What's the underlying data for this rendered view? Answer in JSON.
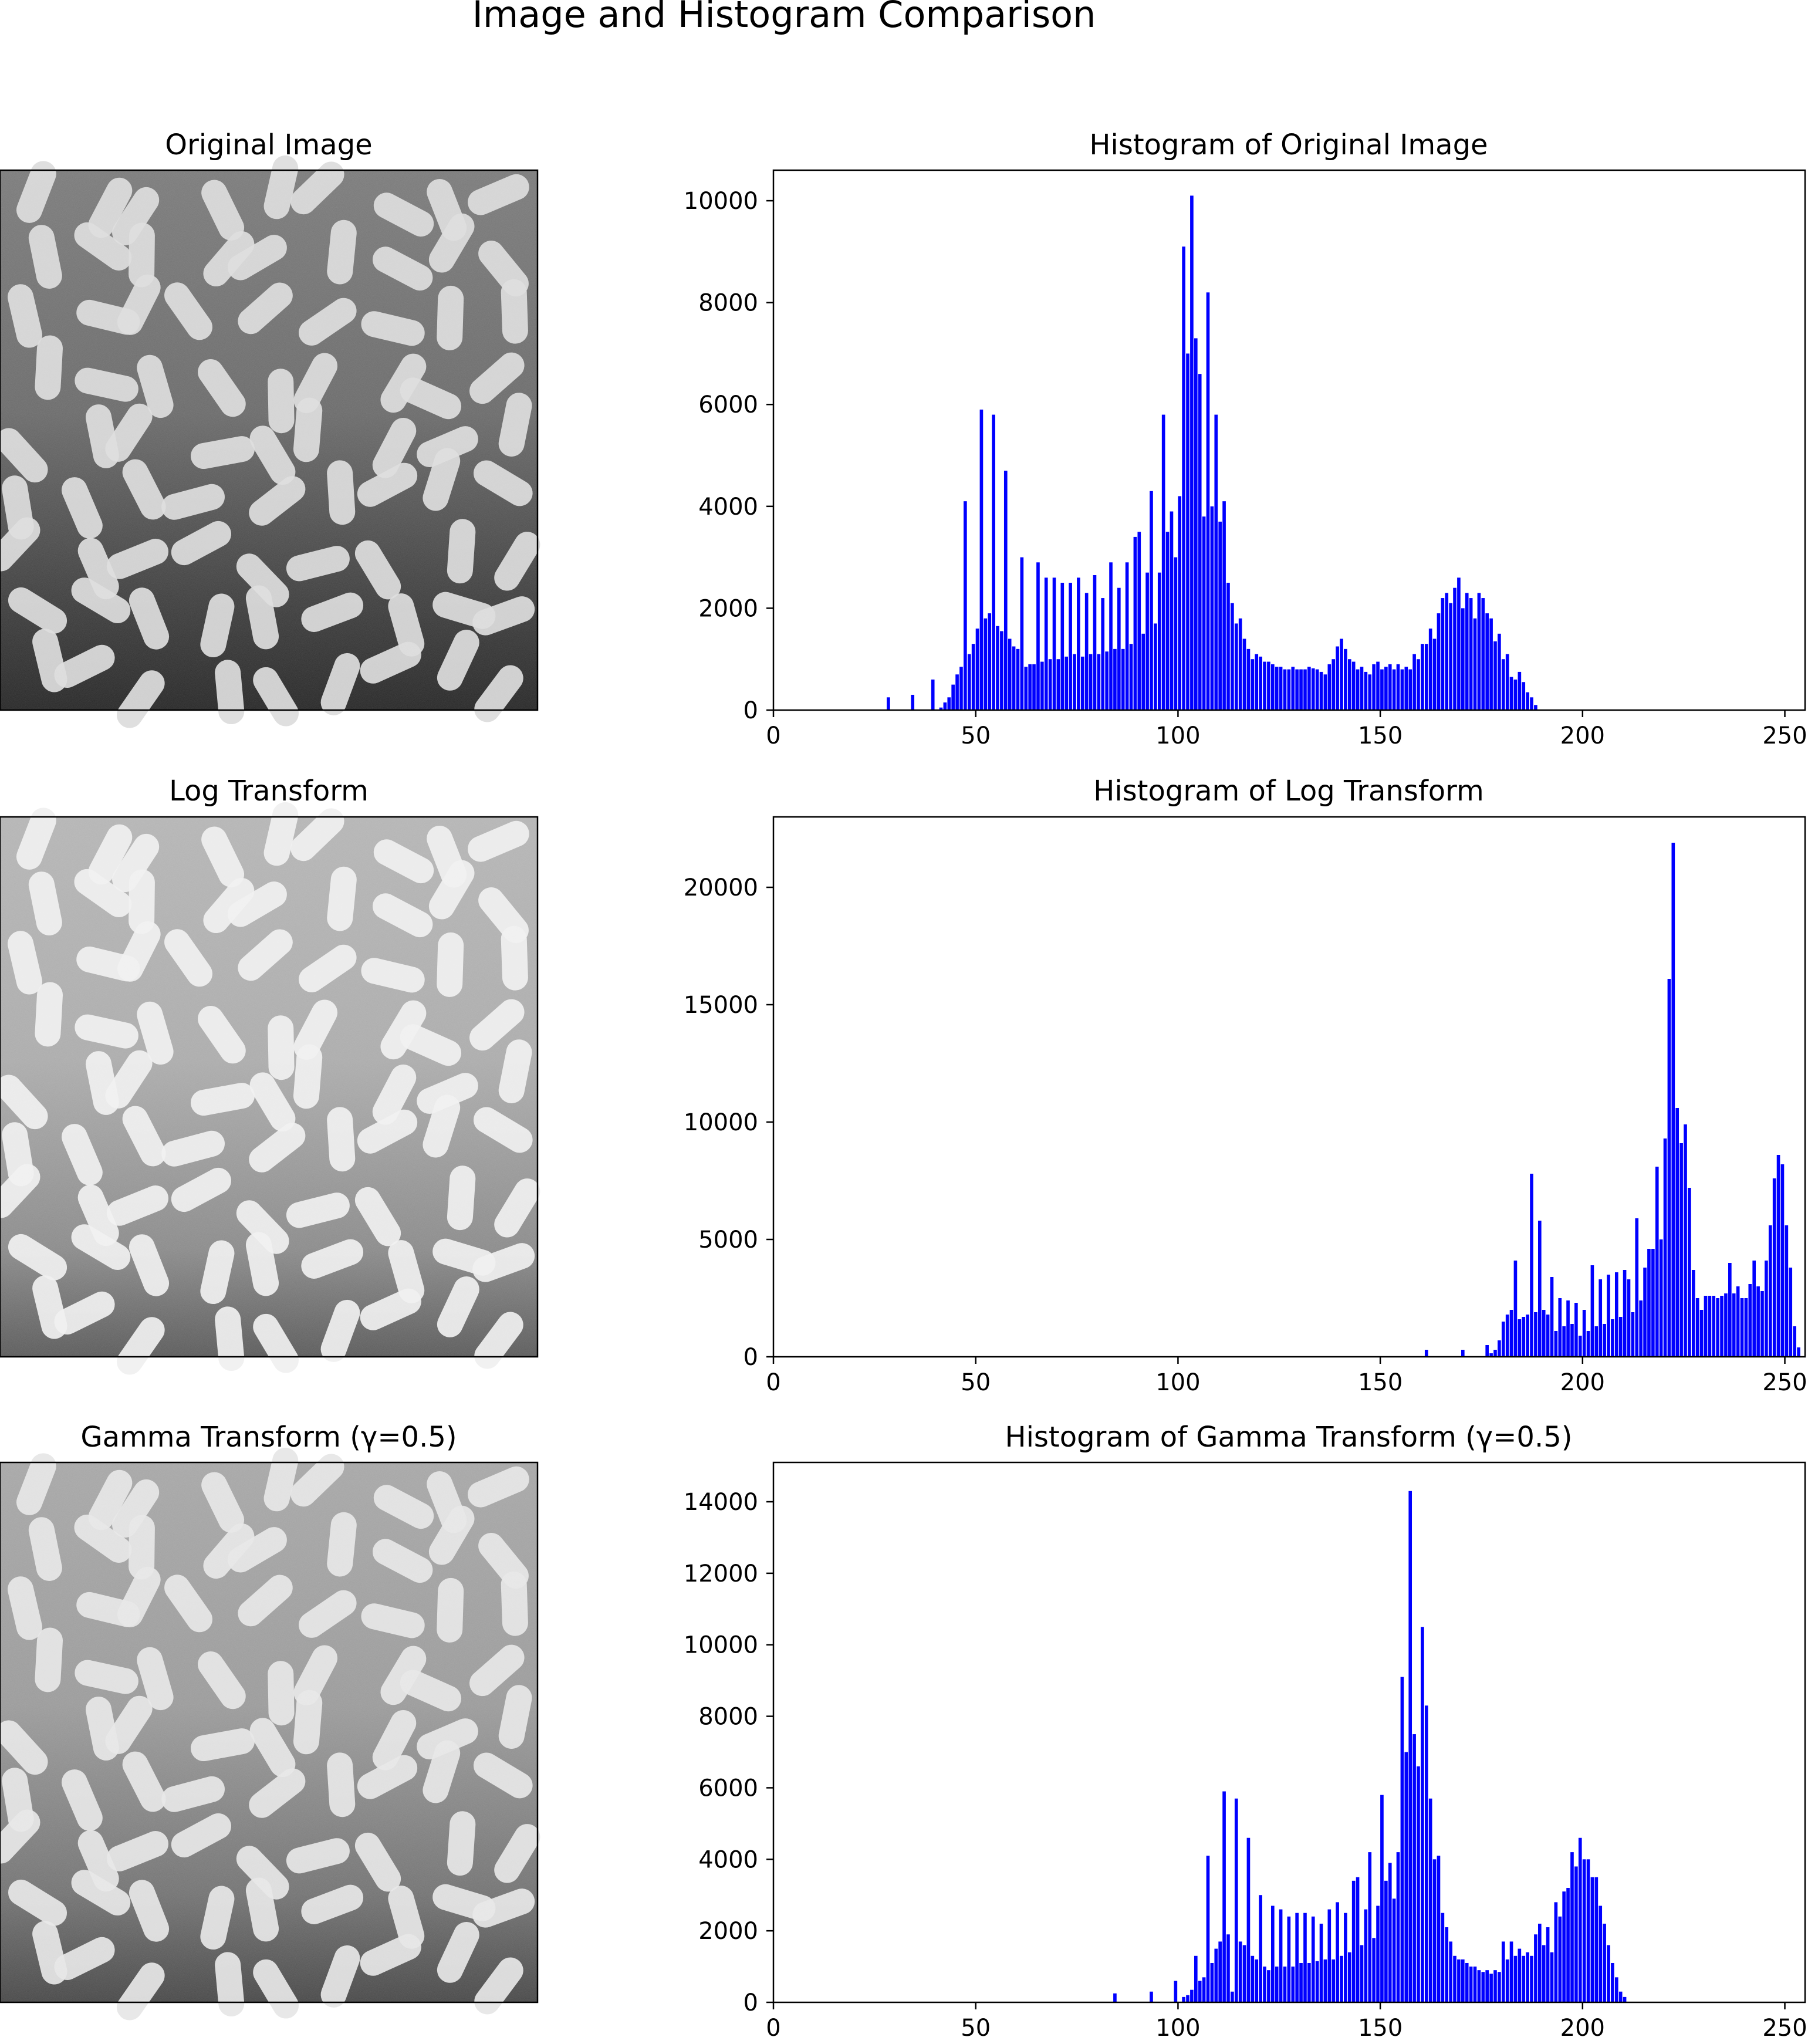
{
  "figure_title": "Image and Histogram Comparison",
  "rows": [
    {
      "image_title": "Original Image",
      "histogram_title": "Histogram of Original Image"
    },
    {
      "image_title": "Log Transform",
      "histogram_title": "Histogram of Log Transform"
    },
    {
      "image_title": "Gamma Transform (γ=0.5)",
      "histogram_title": "Histogram of Gamma Transform (γ=0.5)"
    }
  ],
  "colors": {
    "bars": "#0000ff",
    "axes": "#000000",
    "background": "#ffffff"
  },
  "chart_data": [
    {
      "type": "bar",
      "title": "Histogram of Original Image",
      "xlabel": "",
      "ylabel": "",
      "xlim": [
        0,
        255
      ],
      "ylim": [
        0,
        10600
      ],
      "xticks": [
        0,
        50,
        100,
        150,
        200,
        250
      ],
      "yticks": [
        0,
        2000,
        4000,
        6000,
        8000,
        10000
      ],
      "grid": false,
      "bars": [
        [
          28,
          250
        ],
        [
          34,
          300
        ],
        [
          39,
          600
        ],
        [
          41,
          50
        ],
        [
          42,
          150
        ],
        [
          43,
          250
        ],
        [
          44,
          500
        ],
        [
          45,
          700
        ],
        [
          46,
          850
        ],
        [
          47,
          4100
        ],
        [
          48,
          1100
        ],
        [
          49,
          1300
        ],
        [
          50,
          1600
        ],
        [
          51,
          5900
        ],
        [
          52,
          1800
        ],
        [
          53,
          1900
        ],
        [
          54,
          5800
        ],
        [
          55,
          1650
        ],
        [
          56,
          1550
        ],
        [
          57,
          4700
        ],
        [
          58,
          1400
        ],
        [
          59,
          1250
        ],
        [
          60,
          1200
        ],
        [
          61,
          3000
        ],
        [
          62,
          850
        ],
        [
          63,
          900
        ],
        [
          64,
          900
        ],
        [
          65,
          2900
        ],
        [
          66,
          950
        ],
        [
          67,
          2600
        ],
        [
          68,
          1000
        ],
        [
          69,
          2600
        ],
        [
          70,
          1000
        ],
        [
          71,
          2500
        ],
        [
          72,
          1050
        ],
        [
          73,
          2500
        ],
        [
          74,
          1100
        ],
        [
          75,
          2600
        ],
        [
          76,
          1050
        ],
        [
          77,
          2300
        ],
        [
          78,
          1100
        ],
        [
          79,
          2650
        ],
        [
          80,
          1100
        ],
        [
          81,
          2200
        ],
        [
          82,
          1150
        ],
        [
          83,
          2900
        ],
        [
          84,
          1200
        ],
        [
          85,
          2400
        ],
        [
          86,
          1200
        ],
        [
          87,
          2900
        ],
        [
          88,
          1300
        ],
        [
          89,
          3400
        ],
        [
          90,
          3500
        ],
        [
          91,
          1500
        ],
        [
          92,
          2700
        ],
        [
          93,
          4300
        ],
        [
          94,
          1700
        ],
        [
          95,
          2700
        ],
        [
          96,
          5800
        ],
        [
          97,
          3500
        ],
        [
          98,
          3900
        ],
        [
          99,
          3000
        ],
        [
          100,
          4200
        ],
        [
          101,
          9100
        ],
        [
          102,
          7000
        ],
        [
          103,
          10100
        ],
        [
          104,
          7300
        ],
        [
          105,
          6600
        ],
        [
          106,
          3800
        ],
        [
          107,
          8200
        ],
        [
          108,
          4000
        ],
        [
          109,
          5800
        ],
        [
          110,
          3700
        ],
        [
          111,
          4100
        ],
        [
          112,
          2500
        ],
        [
          113,
          2100
        ],
        [
          114,
          1700
        ],
        [
          115,
          1800
        ],
        [
          116,
          1400
        ],
        [
          117,
          1200
        ],
        [
          118,
          1000
        ],
        [
          119,
          1100
        ],
        [
          120,
          1050
        ],
        [
          121,
          950
        ],
        [
          122,
          950
        ],
        [
          123,
          900
        ],
        [
          124,
          850
        ],
        [
          125,
          850
        ],
        [
          126,
          800
        ],
        [
          127,
          800
        ],
        [
          128,
          850
        ],
        [
          129,
          800
        ],
        [
          130,
          800
        ],
        [
          131,
          800
        ],
        [
          132,
          850
        ],
        [
          133,
          820
        ],
        [
          134,
          800
        ],
        [
          135,
          750
        ],
        [
          136,
          700
        ],
        [
          137,
          900
        ],
        [
          138,
          1000
        ],
        [
          139,
          1250
        ],
        [
          140,
          1400
        ],
        [
          141,
          1200
        ],
        [
          142,
          1000
        ],
        [
          143,
          950
        ],
        [
          144,
          800
        ],
        [
          145,
          850
        ],
        [
          146,
          750
        ],
        [
          147,
          700
        ],
        [
          148,
          900
        ],
        [
          149,
          950
        ],
        [
          150,
          800
        ],
        [
          151,
          850
        ],
        [
          152,
          900
        ],
        [
          153,
          800
        ],
        [
          154,
          900
        ],
        [
          155,
          800
        ],
        [
          156,
          850
        ],
        [
          157,
          800
        ],
        [
          158,
          1100
        ],
        [
          159,
          1000
        ],
        [
          160,
          1300
        ],
        [
          161,
          1300
        ],
        [
          162,
          1600
        ],
        [
          163,
          1400
        ],
        [
          164,
          1900
        ],
        [
          165,
          2200
        ],
        [
          166,
          2300
        ],
        [
          167,
          2100
        ],
        [
          168,
          2400
        ],
        [
          169,
          2600
        ],
        [
          170,
          2000
        ],
        [
          171,
          2300
        ],
        [
          172,
          2200
        ],
        [
          173,
          1800
        ],
        [
          174,
          2300
        ],
        [
          175,
          2200
        ],
        [
          176,
          1900
        ],
        [
          177,
          1800
        ],
        [
          178,
          1350
        ],
        [
          179,
          1500
        ],
        [
          180,
          1000
        ],
        [
          181,
          1100
        ],
        [
          182,
          650
        ],
        [
          183,
          600
        ],
        [
          184,
          750
        ],
        [
          185,
          550
        ],
        [
          186,
          350
        ],
        [
          187,
          250
        ],
        [
          188,
          100
        ]
      ]
    },
    {
      "type": "bar",
      "title": "Histogram of Log Transform",
      "xlabel": "",
      "ylabel": "",
      "xlim": [
        0,
        255
      ],
      "ylim": [
        0,
        23000
      ],
      "xticks": [
        0,
        50,
        100,
        150,
        200,
        250
      ],
      "yticks": [
        0,
        5000,
        10000,
        15000,
        20000
      ],
      "grid": false,
      "bars": [
        [
          161,
          300
        ],
        [
          170,
          300
        ],
        [
          176,
          500
        ],
        [
          177,
          150
        ],
        [
          178,
          300
        ],
        [
          179,
          700
        ],
        [
          180,
          1500
        ],
        [
          181,
          1800
        ],
        [
          182,
          2000
        ],
        [
          183,
          4100
        ],
        [
          184,
          1600
        ],
        [
          185,
          1700
        ],
        [
          186,
          1800
        ],
        [
          187,
          7800
        ],
        [
          188,
          1900
        ],
        [
          189,
          5800
        ],
        [
          190,
          2000
        ],
        [
          191,
          1800
        ],
        [
          192,
          3400
        ],
        [
          193,
          1100
        ],
        [
          194,
          2500
        ],
        [
          195,
          1300
        ],
        [
          196,
          2400
        ],
        [
          197,
          1400
        ],
        [
          198,
          2300
        ],
        [
          199,
          900
        ],
        [
          200,
          2000
        ],
        [
          201,
          1100
        ],
        [
          202,
          3900
        ],
        [
          203,
          1300
        ],
        [
          204,
          3300
        ],
        [
          205,
          1400
        ],
        [
          206,
          3500
        ],
        [
          207,
          1600
        ],
        [
          208,
          3600
        ],
        [
          209,
          1700
        ],
        [
          210,
          3700
        ],
        [
          211,
          3300
        ],
        [
          212,
          1900
        ],
        [
          213,
          5900
        ],
        [
          214,
          2400
        ],
        [
          215,
          3800
        ],
        [
          216,
          4600
        ],
        [
          217,
          4600
        ],
        [
          218,
          8100
        ],
        [
          219,
          5000
        ],
        [
          220,
          9300
        ],
        [
          221,
          16100
        ],
        [
          222,
          21900
        ],
        [
          223,
          10600
        ],
        [
          224,
          9100
        ],
        [
          225,
          9900
        ],
        [
          226,
          7200
        ],
        [
          227,
          3700
        ],
        [
          228,
          2500
        ],
        [
          229,
          2000
        ],
        [
          230,
          2600
        ],
        [
          231,
          2600
        ],
        [
          232,
          2600
        ],
        [
          233,
          2500
        ],
        [
          234,
          2600
        ],
        [
          235,
          2700
        ],
        [
          236,
          4000
        ],
        [
          237,
          2700
        ],
        [
          238,
          3000
        ],
        [
          239,
          2500
        ],
        [
          240,
          2500
        ],
        [
          241,
          3100
        ],
        [
          242,
          4100
        ],
        [
          243,
          3000
        ],
        [
          244,
          2800
        ],
        [
          245,
          4100
        ],
        [
          246,
          5600
        ],
        [
          247,
          7600
        ],
        [
          248,
          8600
        ],
        [
          249,
          8200
        ],
        [
          250,
          5600
        ],
        [
          251,
          3800
        ],
        [
          252,
          1300
        ],
        [
          253,
          400
        ]
      ]
    },
    {
      "type": "bar",
      "title": "Histogram of Gamma Transform (γ=0.5)",
      "xlabel": "",
      "ylabel": "",
      "xlim": [
        0,
        255
      ],
      "ylim": [
        0,
        15100
      ],
      "xticks": [
        0,
        50,
        100,
        150,
        200,
        250
      ],
      "yticks": [
        0,
        2000,
        4000,
        6000,
        8000,
        10000,
        12000,
        14000
      ],
      "grid": false,
      "bars": [
        [
          84,
          250
        ],
        [
          93,
          300
        ],
        [
          99,
          600
        ],
        [
          101,
          150
        ],
        [
          102,
          200
        ],
        [
          103,
          350
        ],
        [
          104,
          1300
        ],
        [
          105,
          600
        ],
        [
          106,
          700
        ],
        [
          107,
          4100
        ],
        [
          108,
          1100
        ],
        [
          109,
          1500
        ],
        [
          110,
          1700
        ],
        [
          111,
          5900
        ],
        [
          112,
          1900
        ],
        [
          113,
          300
        ],
        [
          114,
          5700
        ],
        [
          115,
          1700
        ],
        [
          116,
          1600
        ],
        [
          117,
          4600
        ],
        [
          118,
          1300
        ],
        [
          119,
          1200
        ],
        [
          120,
          3000
        ],
        [
          121,
          1000
        ],
        [
          122,
          900
        ],
        [
          123,
          2700
        ],
        [
          124,
          1000
        ],
        [
          125,
          2600
        ],
        [
          126,
          1000
        ],
        [
          127,
          2400
        ],
        [
          128,
          1000
        ],
        [
          129,
          2500
        ],
        [
          130,
          1100
        ],
        [
          131,
          2500
        ],
        [
          132,
          1100
        ],
        [
          133,
          2400
        ],
        [
          134,
          1150
        ],
        [
          135,
          2200
        ],
        [
          136,
          1200
        ],
        [
          137,
          2600
        ],
        [
          138,
          1200
        ],
        [
          139,
          2800
        ],
        [
          140,
          1300
        ],
        [
          141,
          2500
        ],
        [
          142,
          1400
        ],
        [
          143,
          3400
        ],
        [
          144,
          3500
        ],
        [
          145,
          1600
        ],
        [
          146,
          2600
        ],
        [
          147,
          4200
        ],
        [
          148,
          1800
        ],
        [
          149,
          2700
        ],
        [
          150,
          5800
        ],
        [
          151,
          3400
        ],
        [
          152,
          3900
        ],
        [
          153,
          2900
        ],
        [
          154,
          4200
        ],
        [
          155,
          9100
        ],
        [
          156,
          7000
        ],
        [
          157,
          14300
        ],
        [
          158,
          7500
        ],
        [
          159,
          6600
        ],
        [
          160,
          10500
        ],
        [
          161,
          8300
        ],
        [
          162,
          5700
        ],
        [
          163,
          4000
        ],
        [
          164,
          4100
        ],
        [
          165,
          2500
        ],
        [
          166,
          2100
        ],
        [
          167,
          1700
        ],
        [
          168,
          1300
        ],
        [
          169,
          1200
        ],
        [
          170,
          1200
        ],
        [
          171,
          1100
        ],
        [
          172,
          1000
        ],
        [
          173,
          1000
        ],
        [
          174,
          900
        ],
        [
          175,
          850
        ],
        [
          176,
          900
        ],
        [
          177,
          800
        ],
        [
          178,
          900
        ],
        [
          179,
          850
        ],
        [
          180,
          1700
        ],
        [
          181,
          1200
        ],
        [
          182,
          1700
        ],
        [
          183,
          1300
        ],
        [
          184,
          1500
        ],
        [
          185,
          1300
        ],
        [
          186,
          1400
        ],
        [
          187,
          1300
        ],
        [
          188,
          1900
        ],
        [
          189,
          2200
        ],
        [
          190,
          1600
        ],
        [
          191,
          2100
        ],
        [
          192,
          1400
        ],
        [
          193,
          2800
        ],
        [
          194,
          2400
        ],
        [
          195,
          3100
        ],
        [
          196,
          3200
        ],
        [
          197,
          4200
        ],
        [
          198,
          3800
        ],
        [
          199,
          4600
        ],
        [
          200,
          4000
        ],
        [
          201,
          4000
        ],
        [
          202,
          3500
        ],
        [
          203,
          3500
        ],
        [
          204,
          2700
        ],
        [
          205,
          2200
        ],
        [
          206,
          1600
        ],
        [
          207,
          1100
        ],
        [
          208,
          700
        ],
        [
          209,
          300
        ],
        [
          210,
          150
        ]
      ]
    }
  ]
}
